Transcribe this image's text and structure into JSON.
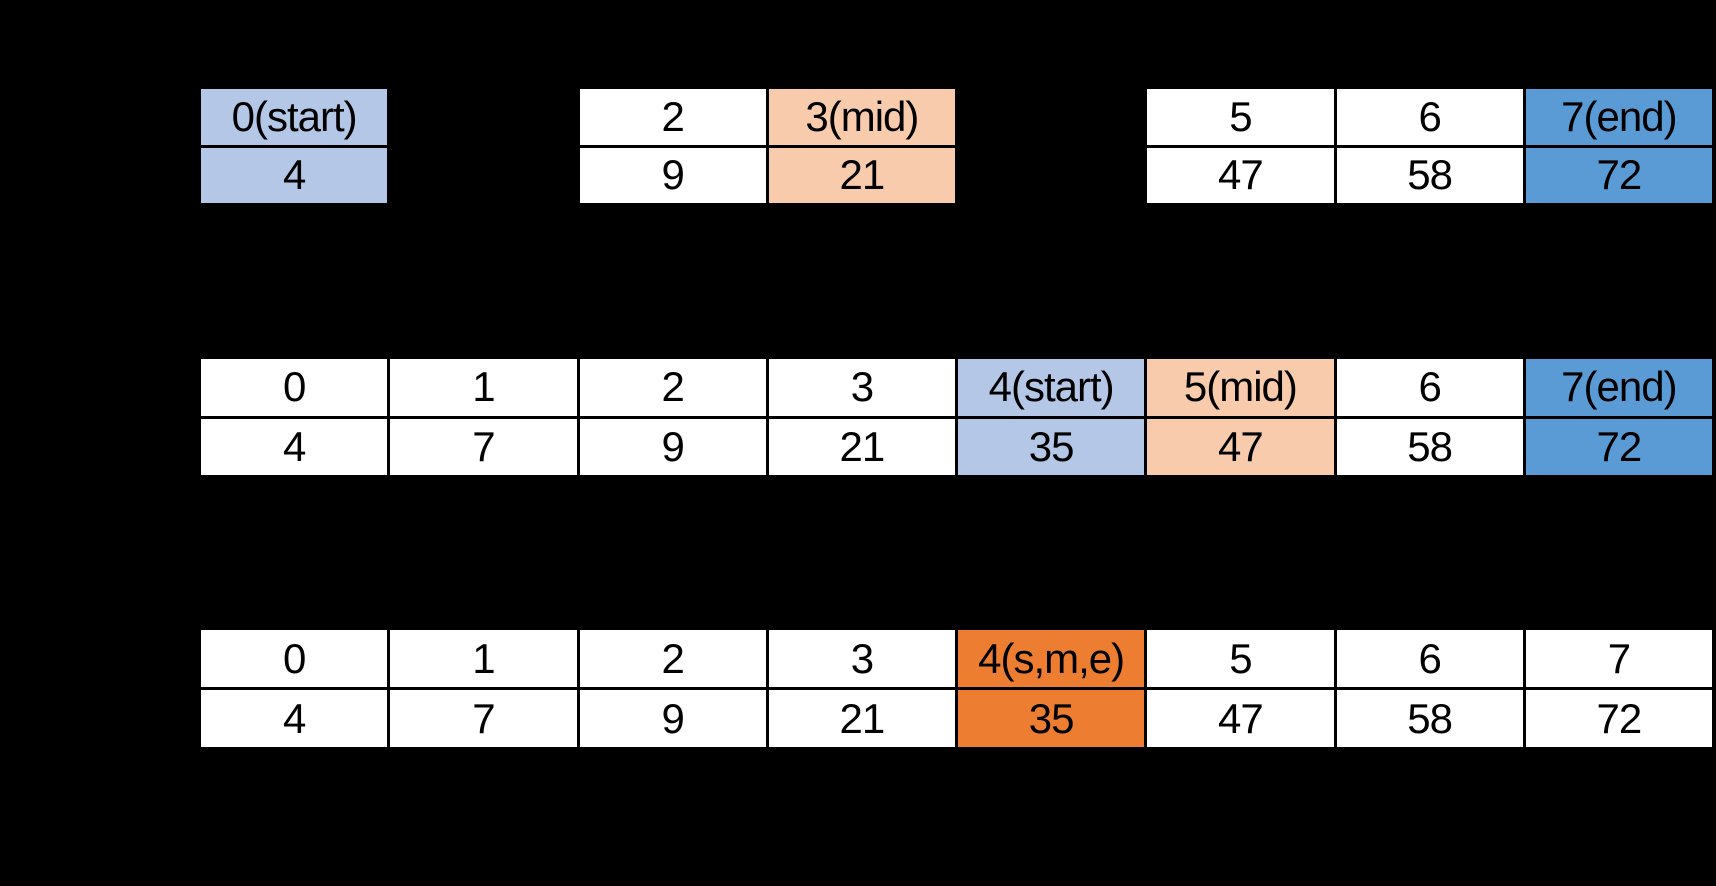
{
  "app": {
    "background": "#000000"
  },
  "colors": {
    "plain": "#ffffff",
    "start": "#b4c7e7",
    "mid": "#f8cbad",
    "end": "#5b9bd5",
    "found": "#ed7d31",
    "text": "#000000",
    "border": "#000000"
  },
  "diagram": {
    "kind": "binary-search-array-steps",
    "rows_per_step": [
      "index",
      "value"
    ],
    "steps": [
      {
        "name": "step-1",
        "cells": [
          {
            "index": "0(start)",
            "value": "4",
            "bg": "start",
            "visible": true
          },
          {
            "index": "",
            "value": "",
            "bg": "plain",
            "visible": false
          },
          {
            "index": "2",
            "value": "9",
            "bg": "plain",
            "visible": true
          },
          {
            "index": "3(mid)",
            "value": "21",
            "bg": "mid",
            "visible": true
          },
          {
            "index": "",
            "value": "",
            "bg": "plain",
            "visible": false
          },
          {
            "index": "5",
            "value": "47",
            "bg": "plain",
            "visible": true
          },
          {
            "index": "6",
            "value": "58",
            "bg": "plain",
            "visible": true
          },
          {
            "index": "7(end)",
            "value": "72",
            "bg": "end",
            "visible": true
          }
        ]
      },
      {
        "name": "step-2",
        "cells": [
          {
            "index": "0",
            "value": "4",
            "bg": "plain",
            "visible": true
          },
          {
            "index": "1",
            "value": "7",
            "bg": "plain",
            "visible": true
          },
          {
            "index": "2",
            "value": "9",
            "bg": "plain",
            "visible": true
          },
          {
            "index": "3",
            "value": "21",
            "bg": "plain",
            "visible": true
          },
          {
            "index": "4(start)",
            "value": "35",
            "bg": "start",
            "visible": true
          },
          {
            "index": "5(mid)",
            "value": "47",
            "bg": "mid",
            "visible": true
          },
          {
            "index": "6",
            "value": "58",
            "bg": "plain",
            "visible": true
          },
          {
            "index": "7(end)",
            "value": "72",
            "bg": "end",
            "visible": true
          }
        ]
      },
      {
        "name": "step-3",
        "cells": [
          {
            "index": "0",
            "value": "4",
            "bg": "plain",
            "visible": true
          },
          {
            "index": "1",
            "value": "7",
            "bg": "plain",
            "visible": true
          },
          {
            "index": "2",
            "value": "9",
            "bg": "plain",
            "visible": true
          },
          {
            "index": "3",
            "value": "21",
            "bg": "plain",
            "visible": true
          },
          {
            "index": "4(s,m,e)",
            "value": "35",
            "bg": "found",
            "visible": true
          },
          {
            "index": "5",
            "value": "47",
            "bg": "plain",
            "visible": true
          },
          {
            "index": "6",
            "value": "58",
            "bg": "plain",
            "visible": true
          },
          {
            "index": "7",
            "value": "72",
            "bg": "plain",
            "visible": true
          }
        ]
      }
    ]
  }
}
